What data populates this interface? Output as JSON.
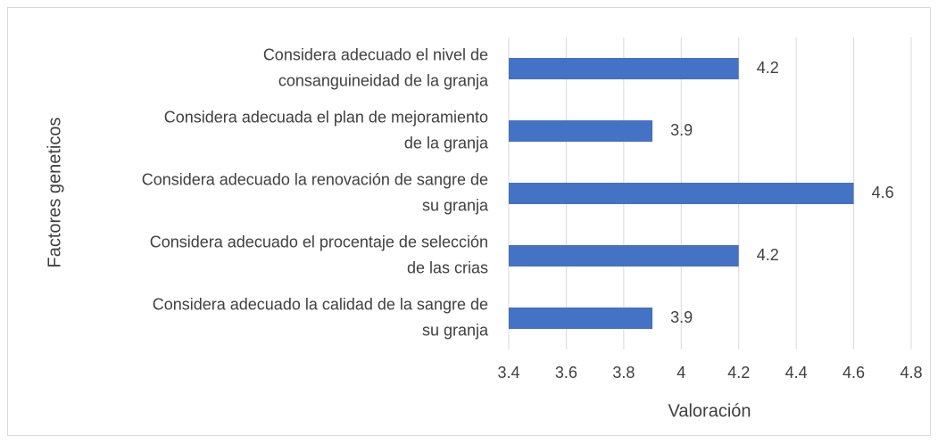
{
  "chart_data": {
    "type": "bar",
    "orientation": "horizontal",
    "categories": [
      "Considera adecuado el nivel de\nconsanguineidad de la granja",
      "Considera adecuada el plan de mejoramiento\nde la granja",
      "Considera adecuado la renovación de sangre de\nsu granja",
      "Considera adecuado el procentaje de selección\nde las crias",
      "Considera adecuado la calidad de la sangre de\nsu granja"
    ],
    "values": [
      4.2,
      3.9,
      4.6,
      4.2,
      3.9
    ],
    "color": "#4472c4",
    "xlim": [
      3.4,
      4.8
    ],
    "xticks": [
      3.4,
      3.6,
      3.8,
      4,
      4.2,
      4.4,
      4.6,
      4.8
    ],
    "xlabel": "Valoración",
    "ylabel": "Factores  geneticos",
    "grid": true
  }
}
